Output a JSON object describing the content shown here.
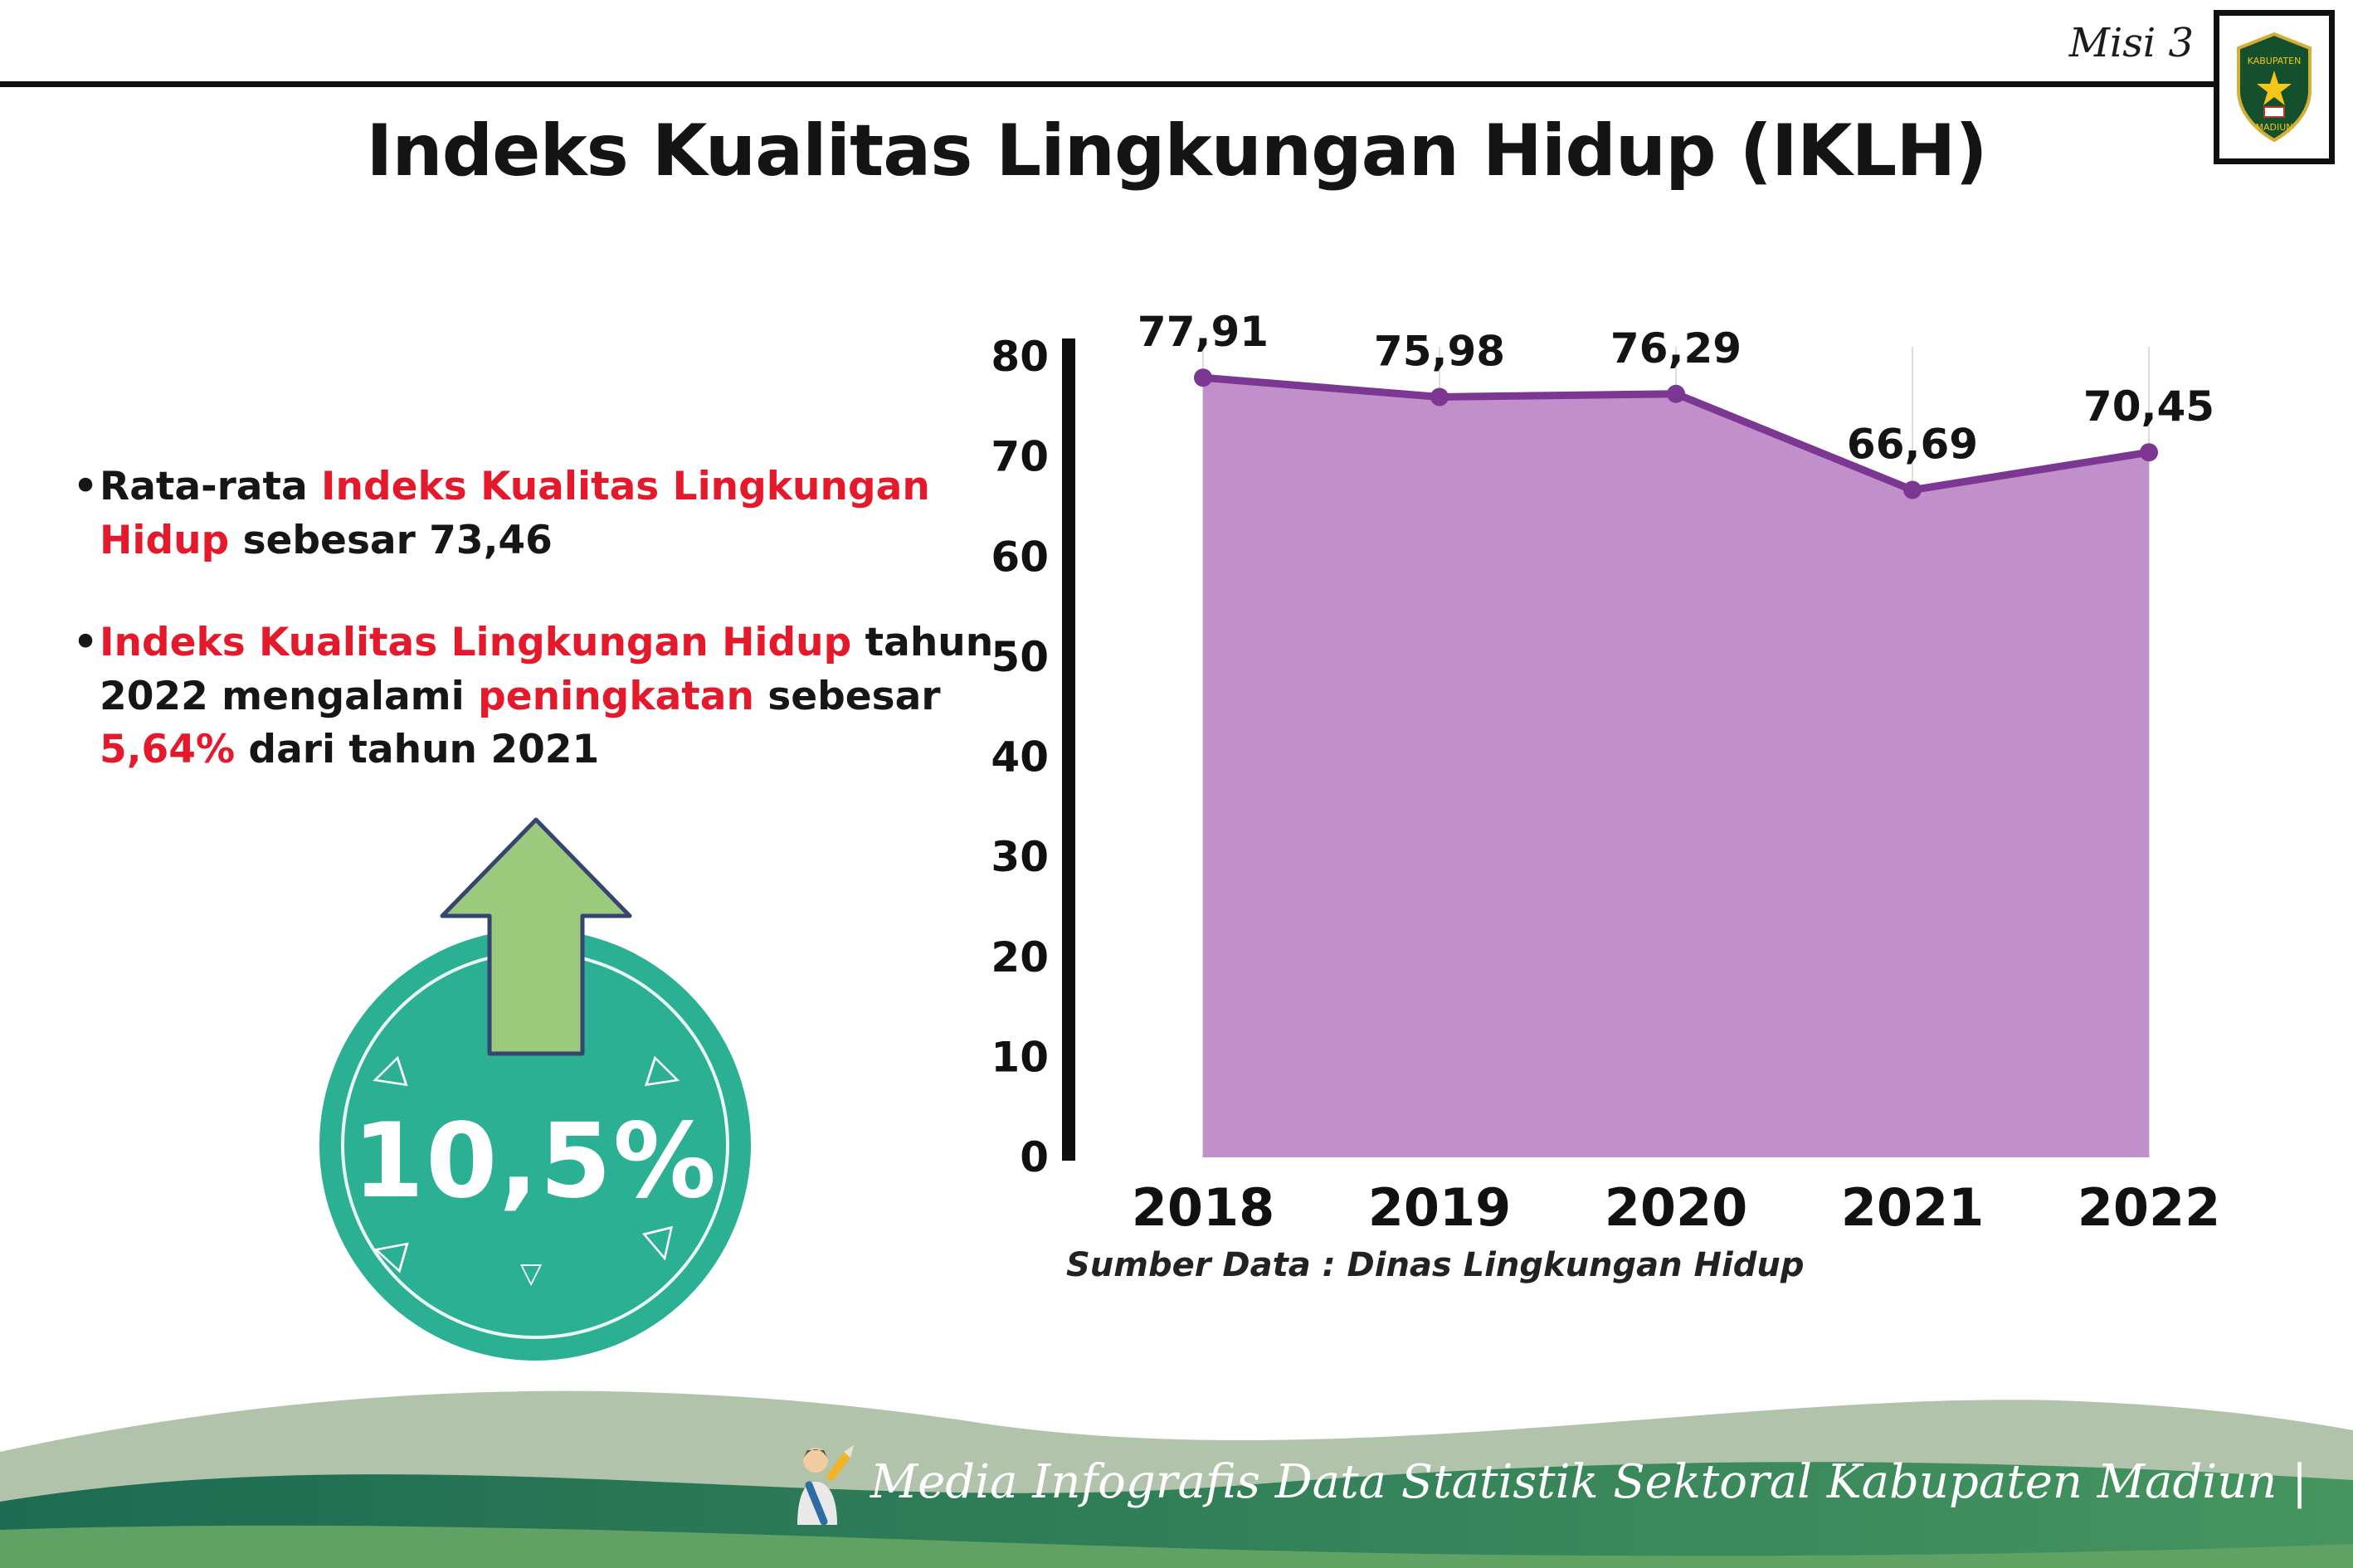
{
  "header": {
    "misi_label": "Misi 3",
    "logo": {
      "top_text": "KABUPATEN",
      "bottom_text": "MADIUN"
    }
  },
  "title": "Indeks Kualitas Lingkungan Hidup (IKLH)",
  "bullets": {
    "b1": {
      "s0": "Rata-rata ",
      "s1": "Indeks Kualitas Lingkungan Hidup",
      "s2": " sebesar 73,46"
    },
    "b2": {
      "s0": "Indeks Kualitas Lingkungan Hidup",
      "s1": " tahun 2022 mengalami ",
      "s2": "peningkatan",
      "s3": " sebesar ",
      "s4": "5,64%",
      "s5": " dari tahun 2021"
    }
  },
  "badge": {
    "value": "10,5%"
  },
  "chart_data": {
    "type": "area",
    "title": "Indeks Kualitas Lingkungan Hidup (IKLH)",
    "categories": [
      "2018",
      "2019",
      "2020",
      "2021",
      "2022"
    ],
    "values": [
      77.91,
      75.98,
      76.29,
      66.69,
      70.45
    ],
    "labels": [
      "77,91",
      "75,98",
      "76,29",
      "66,69",
      "70,45"
    ],
    "ylim": [
      0,
      80
    ],
    "yticks": [
      0,
      10,
      20,
      30,
      40,
      50,
      60,
      70,
      80
    ],
    "grid": "light vertical lines at each year",
    "legend": "none",
    "source": "Sumber Data : Dinas Lingkungan Hidup",
    "fill_color": "#c18fca",
    "line_color": "#7c3793"
  },
  "footer": {
    "credit": "Media Infografis Data Statistik Sektoral Kabupaten Madiun |"
  },
  "colors": {
    "accent_red": "#e41a2c",
    "badge_teal": "#2bb093",
    "arrow_green": "#9cca7c",
    "wave_sage": "#b2c3ab",
    "wave_dark": "#1d6b52",
    "wave_green": "#5fa263"
  }
}
